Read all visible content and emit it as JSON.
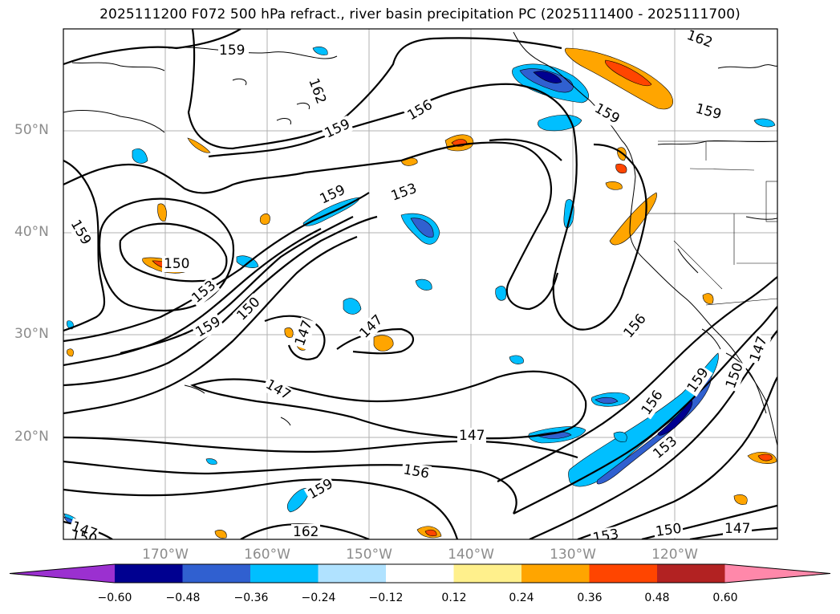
{
  "title": "2025111200 F072 500 hPa refract., river basin precipitation PC (2025111400 - 2025111700)",
  "map": {
    "lon_range": [
      -180,
      -110
    ],
    "lat_range": [
      10,
      60
    ],
    "lat_labels": [
      "50°N",
      "40°N",
      "30°N",
      "20°N"
    ],
    "lon_labels": [
      "170°W",
      "160°W",
      "150°W",
      "140°W",
      "130°W",
      "120°W"
    ],
    "contour_labels": [
      "159",
      "162",
      "156",
      "159",
      "153",
      "159",
      "150",
      "153",
      "150",
      "159",
      "147",
      "147",
      "147",
      "147",
      "156",
      "156",
      "159",
      "153",
      "150",
      "147",
      "159",
      "162",
      "153",
      "150",
      "147",
      "147",
      "150",
      "159"
    ]
  },
  "colorbar": {
    "colors": [
      "#9b30d0",
      "#000090",
      "#3060d0",
      "#00bfff",
      "#b0e2ff",
      "#ffffff",
      "#fff08c",
      "#ffa500",
      "#ff4500",
      "#b22222",
      "#ff88aa"
    ],
    "ticks": [
      "−0.60",
      "−0.48",
      "−0.36",
      "−0.24",
      "−0.12",
      "0.12",
      "0.24",
      "0.36",
      "0.48",
      "0.60"
    ]
  }
}
